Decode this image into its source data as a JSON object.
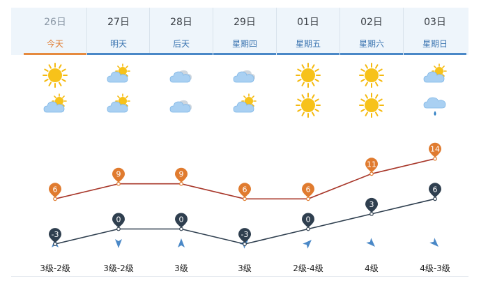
{
  "days": [
    {
      "date": "26日",
      "label": "今天",
      "wind_level": "3级-2级",
      "day_icon": "sun-icon",
      "night_icon": "partly-cloudy-icon",
      "wind_dir": "north",
      "high": 6,
      "low": -3,
      "today": true
    },
    {
      "date": "27日",
      "label": "明天",
      "wind_level": "3级-2级",
      "day_icon": "partly-cloudy-icon",
      "night_icon": "partly-cloudy-icon",
      "wind_dir": "south",
      "high": 9,
      "low": 0,
      "today": false
    },
    {
      "date": "28日",
      "label": "后天",
      "wind_level": "3级",
      "day_icon": "cloudy-icon",
      "night_icon": "cloudy-icon",
      "wind_dir": "north",
      "high": 9,
      "low": 0,
      "today": false
    },
    {
      "date": "29日",
      "label": "星期四",
      "wind_level": "3级",
      "day_icon": "cloudy-icon",
      "night_icon": "partly-cloudy-icon",
      "wind_dir": "northeast",
      "high": 6,
      "low": -3,
      "today": false
    },
    {
      "date": "01日",
      "label": "星期五",
      "wind_level": "2级-4级",
      "day_icon": "sun-icon",
      "night_icon": "sun-icon",
      "wind_dir": "northeast",
      "high": 6,
      "low": 0,
      "today": false
    },
    {
      "date": "02日",
      "label": "星期六",
      "wind_level": "4级",
      "day_icon": "sun-icon",
      "night_icon": "sun-icon",
      "wind_dir": "southeast",
      "high": 11,
      "low": 3,
      "today": false
    },
    {
      "date": "03日",
      "label": "星期日",
      "wind_level": "4级-3级",
      "day_icon": "partly-cloudy-icon",
      "night_icon": "rain-icon",
      "wind_dir": "southeast",
      "high": 14,
      "low": 6,
      "today": false
    }
  ],
  "colors": {
    "high": "#e07b2f",
    "low": "#2f3f4f",
    "high_line": "#a8372a",
    "low_line": "#2f3f4f",
    "accent": "#4a88c7"
  },
  "chart_data": {
    "type": "line",
    "categories": [
      "26日",
      "27日",
      "28日",
      "29日",
      "01日",
      "02日",
      "03日"
    ],
    "series": [
      {
        "values": [
          6,
          9,
          9,
          6,
          6,
          11,
          14
        ]
      },
      {
        "values": [
          -3,
          0,
          0,
          -3,
          0,
          3,
          6
        ]
      }
    ]
  }
}
